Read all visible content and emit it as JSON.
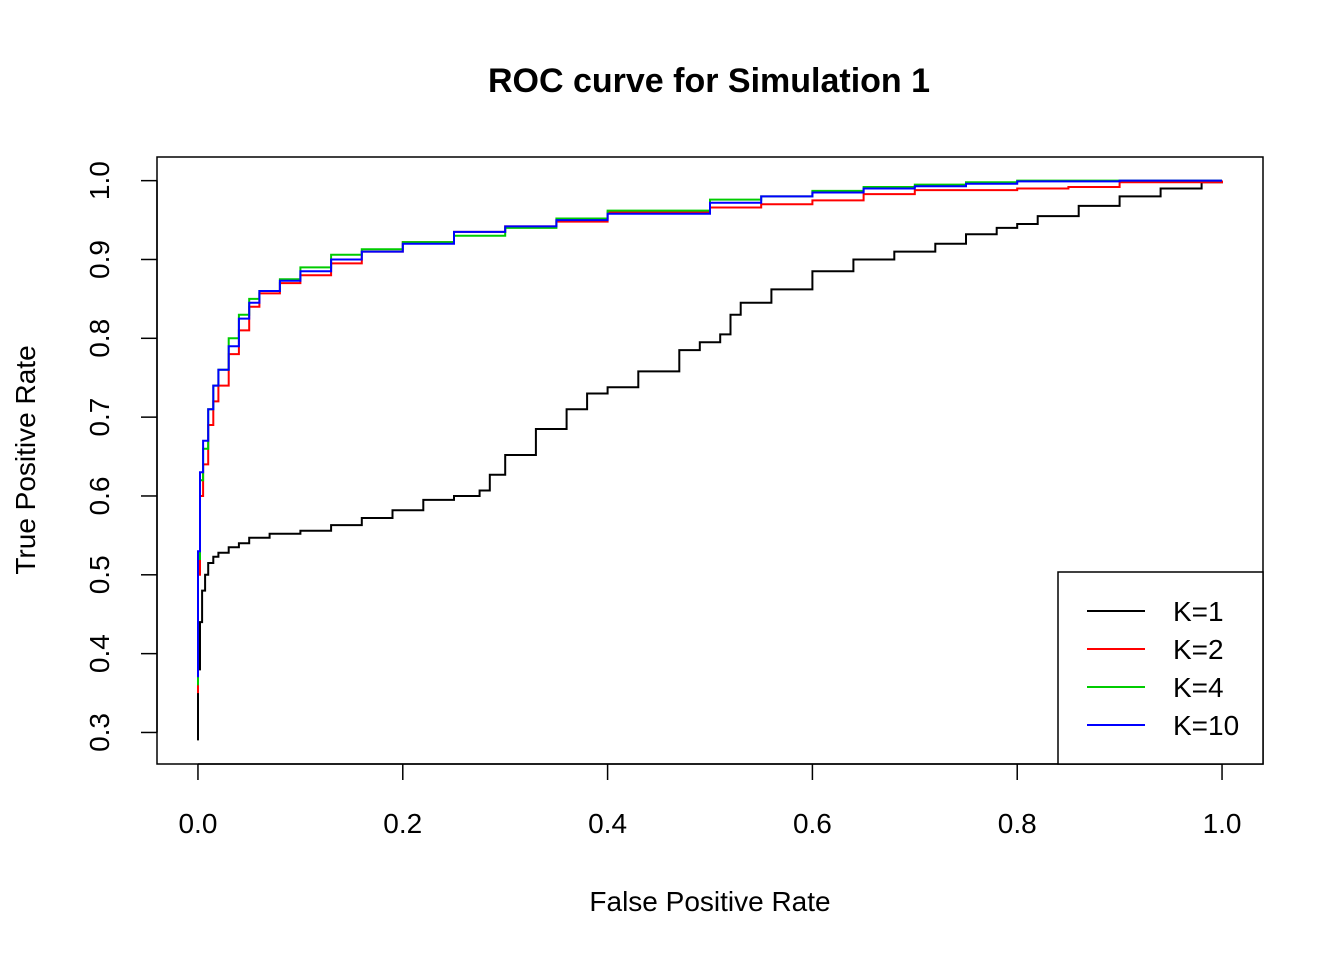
{
  "chart_data": {
    "type": "line",
    "title": "ROC curve for Simulation 1",
    "xlabel": "False Positive Rate",
    "ylabel": "True Positive Rate",
    "xlim": [
      -0.04,
      1.04
    ],
    "ylim": [
      0.26,
      1.03
    ],
    "xticks": [
      0.0,
      0.2,
      0.4,
      0.6,
      0.8,
      1.0
    ],
    "xtick_labels": [
      "0.0",
      "0.2",
      "0.4",
      "0.6",
      "0.8",
      "1.0"
    ],
    "yticks": [
      0.3,
      0.4,
      0.5,
      0.6,
      0.7,
      0.8,
      0.9,
      1.0
    ],
    "ytick_labels": [
      "0.3",
      "0.4",
      "0.5",
      "0.6",
      "0.7",
      "0.8",
      "0.9",
      "1.0"
    ],
    "grid": false,
    "legend_position": "bottom-right",
    "series": [
      {
        "name": "K=1",
        "color": "#000000",
        "x": [
          0.0,
          0.0,
          0.002,
          0.004,
          0.007,
          0.01,
          0.015,
          0.02,
          0.03,
          0.04,
          0.05,
          0.07,
          0.1,
          0.13,
          0.16,
          0.19,
          0.22,
          0.25,
          0.275,
          0.285,
          0.3,
          0.33,
          0.36,
          0.38,
          0.4,
          0.43,
          0.47,
          0.49,
          0.51,
          0.52,
          0.53,
          0.56,
          0.6,
          0.64,
          0.68,
          0.72,
          0.75,
          0.78,
          0.8,
          0.82,
          0.86,
          0.9,
          0.94,
          0.98,
          1.0
        ],
        "y": [
          0.29,
          0.38,
          0.44,
          0.48,
          0.5,
          0.515,
          0.523,
          0.528,
          0.535,
          0.54,
          0.547,
          0.552,
          0.556,
          0.563,
          0.572,
          0.582,
          0.595,
          0.6,
          0.607,
          0.627,
          0.652,
          0.685,
          0.71,
          0.73,
          0.738,
          0.758,
          0.785,
          0.795,
          0.805,
          0.83,
          0.845,
          0.862,
          0.885,
          0.9,
          0.91,
          0.92,
          0.932,
          0.94,
          0.945,
          0.955,
          0.968,
          0.98,
          0.99,
          0.998,
          1.0
        ]
      },
      {
        "name": "K=2",
        "color": "#ff0000",
        "x": [
          0.0,
          0.0,
          0.002,
          0.005,
          0.01,
          0.015,
          0.02,
          0.03,
          0.04,
          0.05,
          0.06,
          0.08,
          0.1,
          0.13,
          0.16,
          0.2,
          0.25,
          0.3,
          0.35,
          0.4,
          0.5,
          0.55,
          0.6,
          0.65,
          0.7,
          0.8,
          0.85,
          0.9,
          1.0
        ],
        "y": [
          0.35,
          0.5,
          0.6,
          0.64,
          0.69,
          0.72,
          0.74,
          0.78,
          0.81,
          0.84,
          0.857,
          0.87,
          0.88,
          0.895,
          0.91,
          0.922,
          0.935,
          0.942,
          0.948,
          0.96,
          0.966,
          0.97,
          0.975,
          0.983,
          0.988,
          0.99,
          0.992,
          0.998,
          1.0
        ]
      },
      {
        "name": "K=4",
        "color": "#00cc00",
        "x": [
          0.0,
          0.0,
          0.002,
          0.005,
          0.01,
          0.015,
          0.02,
          0.03,
          0.04,
          0.05,
          0.06,
          0.08,
          0.1,
          0.13,
          0.16,
          0.2,
          0.25,
          0.3,
          0.35,
          0.4,
          0.5,
          0.55,
          0.6,
          0.65,
          0.7,
          0.75,
          0.8,
          0.9,
          1.0
        ],
        "y": [
          0.36,
          0.52,
          0.62,
          0.66,
          0.71,
          0.74,
          0.76,
          0.8,
          0.83,
          0.85,
          0.86,
          0.875,
          0.89,
          0.906,
          0.913,
          0.922,
          0.93,
          0.94,
          0.952,
          0.962,
          0.976,
          0.98,
          0.987,
          0.992,
          0.995,
          0.998,
          1.0,
          1.0,
          1.0
        ]
      },
      {
        "name": "K=10",
        "color": "#0000ff",
        "x": [
          0.0,
          0.0,
          0.002,
          0.005,
          0.01,
          0.015,
          0.02,
          0.03,
          0.04,
          0.05,
          0.06,
          0.08,
          0.1,
          0.13,
          0.16,
          0.2,
          0.25,
          0.3,
          0.35,
          0.4,
          0.5,
          0.55,
          0.6,
          0.65,
          0.7,
          0.75,
          0.8,
          0.9,
          1.0
        ],
        "y": [
          0.37,
          0.53,
          0.63,
          0.67,
          0.71,
          0.74,
          0.76,
          0.79,
          0.825,
          0.845,
          0.86,
          0.873,
          0.885,
          0.9,
          0.91,
          0.92,
          0.935,
          0.942,
          0.95,
          0.958,
          0.972,
          0.98,
          0.985,
          0.99,
          0.993,
          0.996,
          0.999,
          1.0,
          1.0
        ]
      }
    ]
  }
}
